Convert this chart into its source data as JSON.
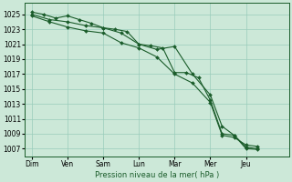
{
  "xlabel": "Pression niveau de la mer( hPa )",
  "background_color": "#cce8d8",
  "grid_color": "#99ccbb",
  "line_color": "#1a5c2a",
  "ylim": [
    1006,
    1026.5
  ],
  "yticks": [
    1007,
    1009,
    1011,
    1013,
    1015,
    1017,
    1019,
    1021,
    1023,
    1025
  ],
  "x_labels": [
    "Dim",
    "Ven",
    "Sam",
    "Lun",
    "Mar",
    "Mer",
    "Jeu"
  ],
  "x_ticks": [
    0,
    1,
    2,
    3,
    4,
    5,
    6
  ],
  "xlim": [
    -0.2,
    7.2
  ],
  "line1_x": [
    0,
    0.33,
    0.67,
    1.0,
    1.33,
    1.67,
    2.0,
    2.33,
    2.67,
    3.0,
    3.33,
    3.67,
    4.0,
    4.33,
    4.67,
    5.0,
    5.33,
    5.67,
    6.0,
    6.33
  ],
  "line1_y": [
    1025.3,
    1025.0,
    1024.5,
    1024.8,
    1024.3,
    1023.8,
    1023.2,
    1023.0,
    1022.7,
    1021.0,
    1020.8,
    1020.5,
    1017.2,
    1017.2,
    1016.5,
    1013.5,
    1009.0,
    1008.8,
    1007.2,
    1007.0
  ],
  "line2_x": [
    0,
    0.5,
    1.0,
    1.5,
    2.0,
    2.5,
    3.0,
    3.5,
    4.0,
    4.5,
    5.0,
    5.33,
    5.67,
    6.0,
    6.33
  ],
  "line2_y": [
    1025.0,
    1024.3,
    1024.0,
    1023.5,
    1023.2,
    1022.5,
    1021.0,
    1020.3,
    1020.7,
    1017.0,
    1014.2,
    1010.0,
    1008.8,
    1007.0,
    1006.9
  ],
  "line3_x": [
    0,
    0.5,
    1.0,
    1.5,
    2.0,
    2.5,
    3.0,
    3.5,
    4.0,
    4.5,
    5.0,
    5.33,
    5.67,
    6.0,
    6.33
  ],
  "line3_y": [
    1024.8,
    1024.0,
    1023.3,
    1022.8,
    1022.5,
    1021.2,
    1020.5,
    1019.3,
    1017.0,
    1015.8,
    1013.2,
    1008.8,
    1008.5,
    1007.5,
    1007.3
  ]
}
